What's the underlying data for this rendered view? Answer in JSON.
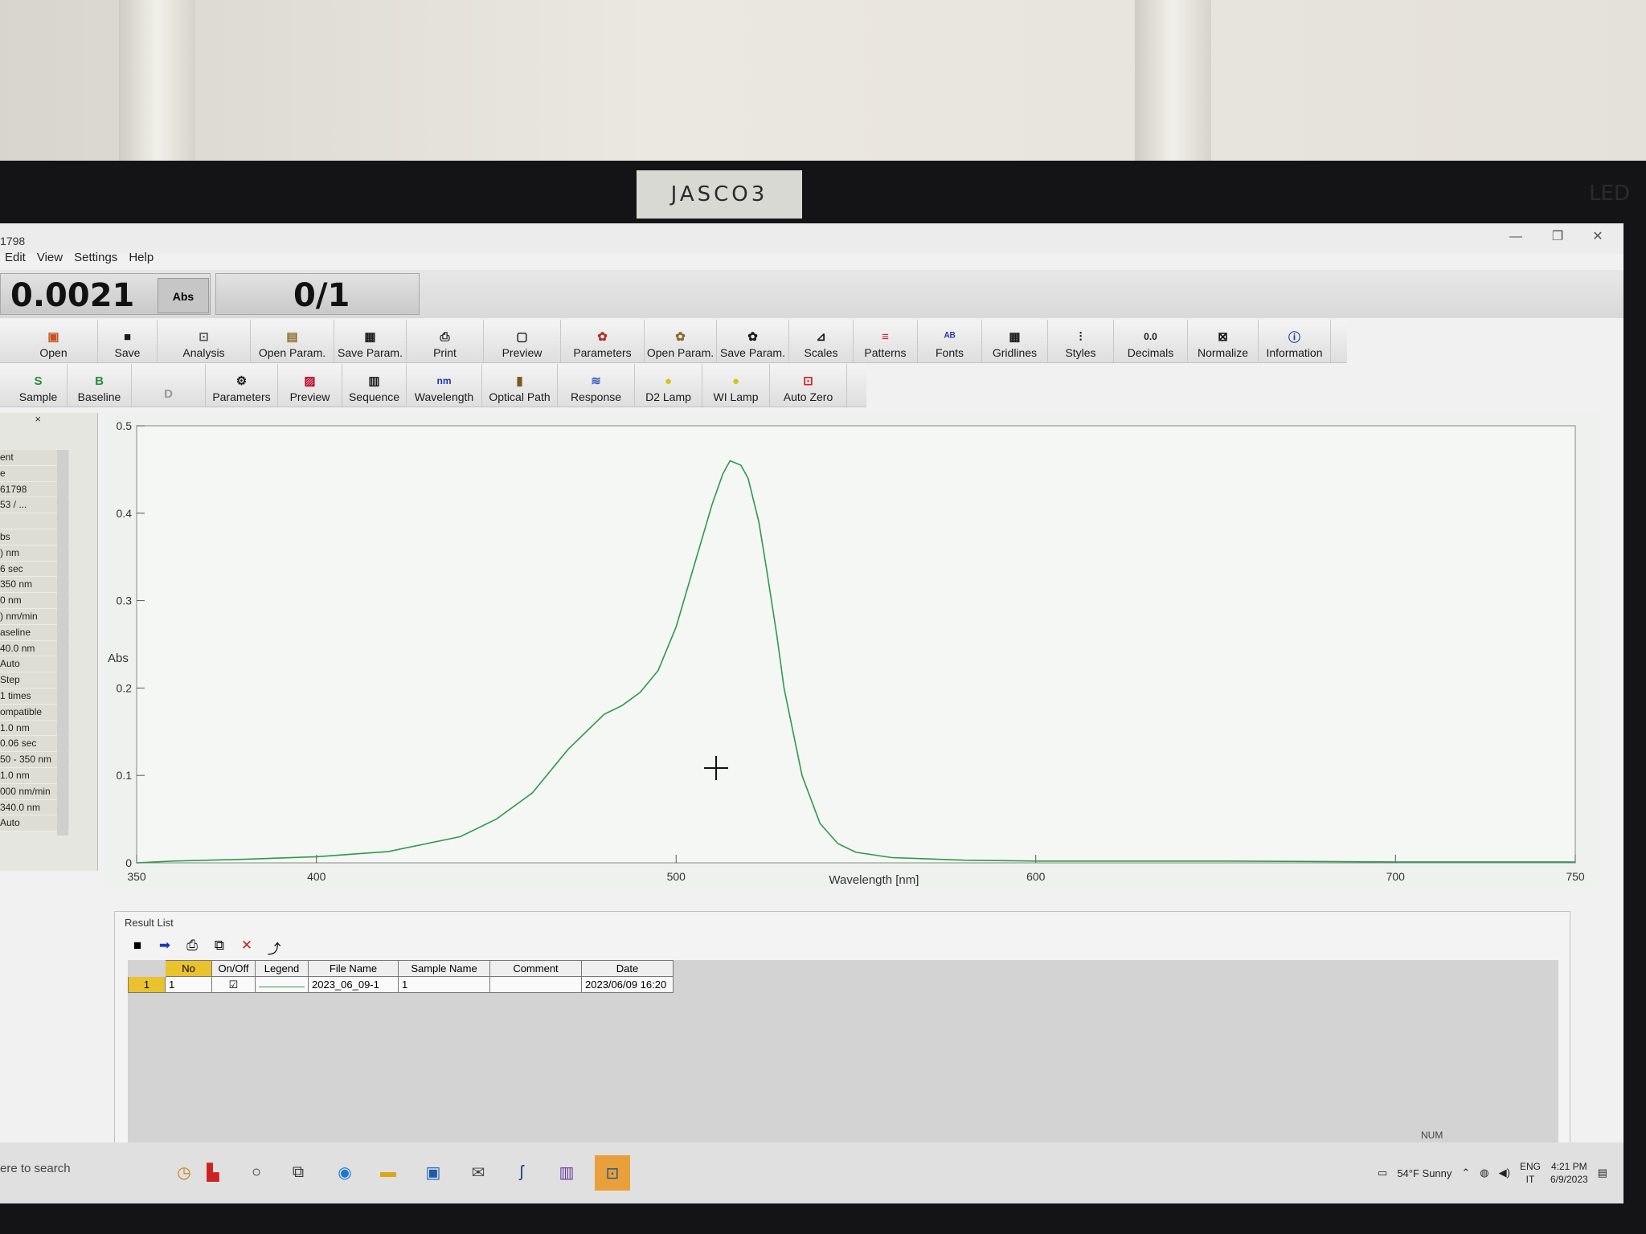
{
  "monitor": {
    "brand": "JASCO3",
    "led_label": "LED"
  },
  "window": {
    "title": "1798",
    "menu": [
      "Edit",
      "View",
      "Settings",
      "Help"
    ]
  },
  "readout": {
    "absorbance": "0.0021",
    "unit": "Abs",
    "progress": "0/1"
  },
  "toolbar1": [
    {
      "label": "Open",
      "icon": "folder-open-icon"
    },
    {
      "label": "Save",
      "icon": "floppy-save-icon"
    },
    {
      "label": "Analysis",
      "icon": "analysis-icon"
    },
    {
      "label": "Open Param.",
      "icon": "open-param-icon"
    },
    {
      "label": "Save Param.",
      "icon": "save-param-icon"
    },
    {
      "label": "Print",
      "icon": "printer-icon"
    },
    {
      "label": "Preview",
      "icon": "preview-icon"
    },
    {
      "label": "Parameters",
      "icon": "parameters-icon"
    },
    {
      "label": "Open Param.",
      "icon": "open-param-icon"
    },
    {
      "label": "Save Param.",
      "icon": "save-param-icon"
    },
    {
      "label": "Scales",
      "icon": "scales-icon"
    },
    {
      "label": "Patterns",
      "icon": "patterns-icon"
    },
    {
      "label": "Fonts",
      "icon": "fonts-icon"
    },
    {
      "label": "Gridlines",
      "icon": "gridlines-icon"
    },
    {
      "label": "Styles",
      "icon": "styles-icon"
    },
    {
      "label": "Decimals",
      "icon": "decimals-icon"
    },
    {
      "label": "Normalize",
      "icon": "normalize-icon"
    },
    {
      "label": "Information",
      "icon": "information-icon"
    }
  ],
  "toolbar2": [
    {
      "label": "Sample",
      "icon": "sample-icon"
    },
    {
      "label": "Baseline",
      "icon": "baseline-icon"
    },
    {
      "label": "",
      "icon": "disabled-icon"
    },
    {
      "label": "Parameters",
      "icon": "parameters-icon"
    },
    {
      "label": "Preview",
      "icon": "preview-icon"
    },
    {
      "label": "Sequence",
      "icon": "sequence-icon"
    },
    {
      "label": "Wavelength",
      "icon": "wavelength-icon"
    },
    {
      "label": "Optical Path",
      "icon": "optical-path-icon"
    },
    {
      "label": "Response",
      "icon": "response-icon"
    },
    {
      "label": "D2 Lamp",
      "icon": "d2-lamp-icon"
    },
    {
      "label": "WI Lamp",
      "icon": "wi-lamp-icon"
    },
    {
      "label": "Auto Zero",
      "icon": "auto-zero-icon"
    }
  ],
  "left_panel": {
    "rows": [
      "ent",
      "e",
      "61798",
      "53 / ...",
      "",
      "bs",
      ") nm",
      "6 sec",
      "350 nm",
      "0 nm",
      ") nm/min",
      "aseline",
      "40.0 nm",
      "Auto",
      "Step",
      "1 times",
      "ompatible",
      "1.0 nm",
      "0.06 sec",
      "50 - 350 nm",
      "1.0 nm",
      "000 nm/min",
      "340.0 nm",
      "Auto"
    ]
  },
  "chart_data": {
    "type": "line",
    "xlabel": "Wavelength [nm]",
    "ylabel": "Abs",
    "xlim": [
      350,
      750
    ],
    "ylim": [
      0,
      0.5
    ],
    "xticks": [
      350,
      400,
      500,
      600,
      700,
      750
    ],
    "yticks": [
      0,
      0.1,
      0.2,
      0.3,
      0.4,
      0.5
    ],
    "grid": false,
    "series": [
      {
        "color": "#2e9a4a",
        "x": [
          350,
          360,
          380,
          400,
          420,
          440,
          450,
          460,
          470,
          480,
          485,
          490,
          495,
          500,
          505,
          510,
          513,
          515,
          518,
          520,
          523,
          525,
          528,
          530,
          535,
          540,
          545,
          550,
          560,
          580,
          600,
          650,
          700,
          750
        ],
        "y": [
          0.0,
          0.002,
          0.004,
          0.007,
          0.013,
          0.03,
          0.05,
          0.08,
          0.13,
          0.17,
          0.18,
          0.195,
          0.22,
          0.27,
          0.34,
          0.41,
          0.445,
          0.46,
          0.455,
          0.44,
          0.39,
          0.34,
          0.26,
          0.2,
          0.1,
          0.045,
          0.022,
          0.012,
          0.006,
          0.003,
          0.002,
          0.002,
          0.001,
          0.001
        ]
      }
    ]
  },
  "result_list": {
    "title": "Result List",
    "columns": [
      "No",
      "On/Off",
      "Legend",
      "File Name",
      "Sample Name",
      "Comment",
      "Date"
    ],
    "rows": [
      {
        "row_header": "1",
        "no": "1",
        "on": "☑",
        "legend": "",
        "file": "2023_06_09-1",
        "sample": "1",
        "comment": "",
        "date": "2023/06/09 16:20"
      }
    ],
    "tools": [
      "floppy-save-icon",
      "arrow-right-icon",
      "print-icon",
      "copy-icon",
      "delete-icon",
      "export-icon"
    ]
  },
  "status": {
    "num": "NUM"
  },
  "taskbar": {
    "search_placeholder": "ere to search",
    "weather": "54°F  Sunny",
    "lang": "ENG",
    "lang2": "IT",
    "time": "4:21 PM",
    "date": "6/9/2023"
  }
}
